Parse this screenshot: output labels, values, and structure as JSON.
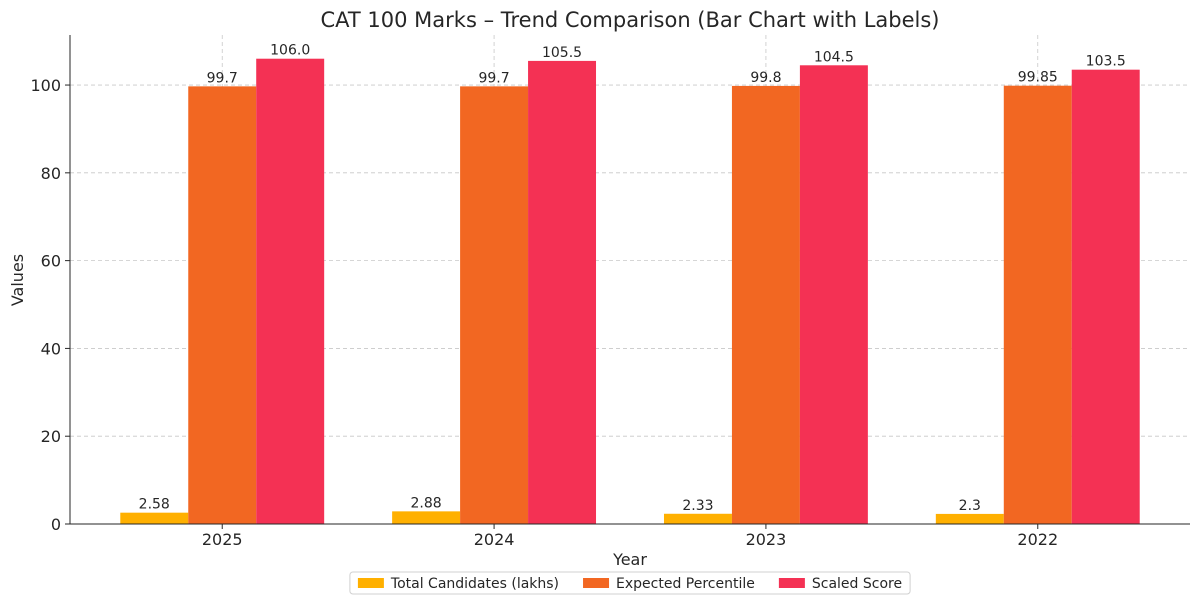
{
  "chart_data": {
    "type": "bar",
    "title": "CAT 100 Marks – Trend Comparison (Bar Chart with Labels)",
    "xlabel": "Year",
    "ylabel": "Values",
    "categories": [
      "2025",
      "2024",
      "2023",
      "2022"
    ],
    "series": [
      {
        "name": "Total Candidates (lakhs)",
        "color": "#FFB000",
        "values": [
          2.58,
          2.88,
          2.33,
          2.3
        ],
        "labels": [
          "2.58",
          "2.88",
          "2.33",
          "2.3"
        ]
      },
      {
        "name": "Expected Percentile",
        "color": "#F26722",
        "values": [
          99.7,
          99.7,
          99.8,
          99.85
        ],
        "labels": [
          "99.7",
          "99.7",
          "99.8",
          "99.85"
        ]
      },
      {
        "name": "Scaled Score",
        "color": "#F43154",
        "values": [
          106.0,
          105.5,
          104.5,
          103.5
        ],
        "labels": [
          "106.0",
          "105.5",
          "104.5",
          "103.5"
        ]
      }
    ],
    "ylim": [
      0,
      111.4
    ],
    "yticks": [
      "0",
      "20",
      "40",
      "60",
      "80",
      "100"
    ],
    "grid": true,
    "legend": "top-right"
  }
}
